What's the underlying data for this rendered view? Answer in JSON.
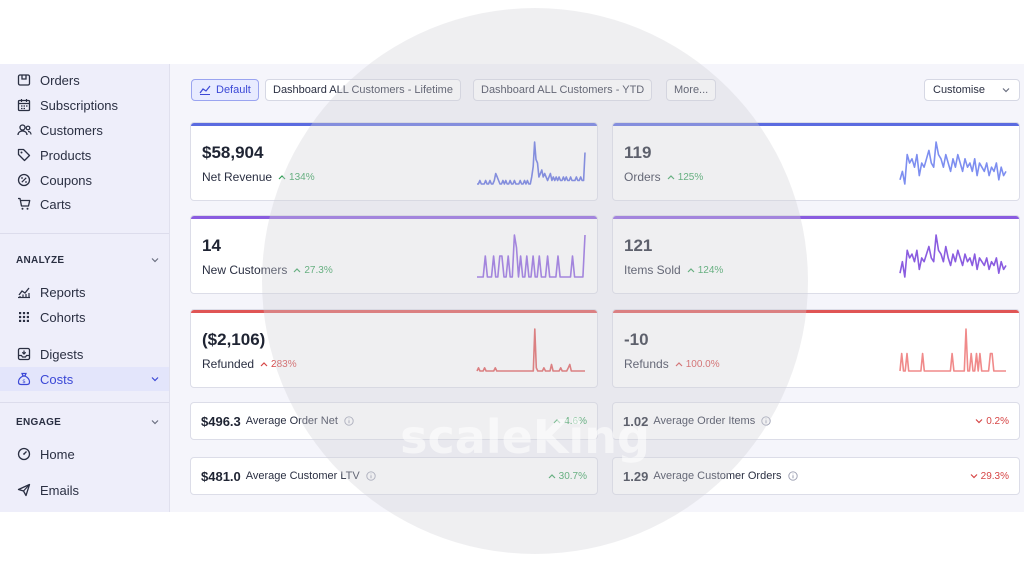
{
  "sidebar": {
    "top_items": [
      {
        "label": "Orders",
        "icon": "package-icon"
      },
      {
        "label": "Subscriptions",
        "icon": "calendar-icon"
      },
      {
        "label": "Customers",
        "icon": "users-icon"
      },
      {
        "label": "Products",
        "icon": "tag-icon"
      },
      {
        "label": "Coupons",
        "icon": "coupon-icon"
      },
      {
        "label": "Carts",
        "icon": "cart-icon"
      }
    ],
    "analyze": {
      "title": "ANALYZE",
      "items": [
        {
          "label": "Reports",
          "icon": "chart-icon"
        },
        {
          "label": "Cohorts",
          "icon": "grid-icon"
        },
        {
          "label": "Digests",
          "icon": "inbox-icon"
        },
        {
          "label": "Costs",
          "icon": "money-bag-icon"
        }
      ]
    },
    "engage": {
      "title": "ENGAGE",
      "items": [
        {
          "label": "Home",
          "icon": "gauge-icon"
        },
        {
          "label": "Emails",
          "icon": "send-icon"
        }
      ]
    }
  },
  "toolbar": {
    "tabs": [
      "Default",
      "Dashboard ALL Customers - Lifetime",
      "Dashboard ALL Customers - YTD",
      "More..."
    ],
    "customise": "Customise"
  },
  "cards": [
    {
      "value": "$58,904",
      "label": "Net Revenue",
      "delta": "134%",
      "color": "#5b6be0",
      "spark": [
        2,
        2,
        3,
        2,
        2,
        2,
        3,
        2,
        2,
        3,
        2,
        2,
        3,
        5,
        4,
        3,
        2,
        2,
        3,
        2,
        3,
        2,
        2,
        3,
        2,
        2,
        3,
        2,
        2,
        2,
        3,
        2,
        2,
        3,
        2,
        3,
        2,
        2,
        4,
        7,
        14,
        9,
        8,
        4,
        5,
        6,
        4,
        5,
        4,
        3,
        4,
        5,
        3,
        4,
        3,
        4,
        3,
        4,
        3,
        3,
        4,
        3,
        4,
        3,
        3,
        4,
        3,
        3,
        3,
        4,
        3,
        3,
        4,
        3,
        3,
        11
      ]
    },
    {
      "value": "119",
      "label": "Orders",
      "delta": "125%",
      "color": "#7d8ef0",
      "spark": [
        3,
        5,
        2,
        9,
        7,
        8,
        6,
        9,
        4,
        7,
        6,
        8,
        10,
        7,
        6,
        12,
        9,
        8,
        6,
        9,
        7,
        5,
        8,
        6,
        9,
        7,
        5,
        8,
        6,
        7,
        5,
        8,
        4,
        7,
        6,
        5,
        7,
        4,
        6,
        5,
        7,
        3,
        6,
        4,
        5
      ]
    },
    {
      "value": "14",
      "label": "New Customers",
      "delta": "27.3%",
      "color": "#8a5ce0",
      "spark": [
        1,
        1,
        1,
        1,
        6,
        1,
        1,
        1,
        6,
        1,
        1,
        6,
        6,
        1,
        1,
        6,
        1,
        1,
        11,
        8,
        1,
        6,
        1,
        1,
        6,
        1,
        1,
        6,
        1,
        1,
        6,
        1,
        1,
        1,
        6,
        1,
        1,
        1,
        1,
        6,
        1,
        1,
        1,
        1,
        1,
        1,
        6,
        1,
        1,
        1,
        1,
        1,
        11
      ]
    },
    {
      "value": "121",
      "label": "Items Sold",
      "delta": "124%",
      "color": "#8a5ce0",
      "spark": [
        3,
        6,
        2,
        9,
        7,
        8,
        6,
        9,
        4,
        7,
        6,
        8,
        10,
        7,
        6,
        13,
        9,
        8,
        6,
        10,
        7,
        5,
        8,
        6,
        9,
        7,
        5,
        8,
        6,
        7,
        5,
        8,
        4,
        7,
        6,
        5,
        7,
        4,
        6,
        5,
        7,
        3,
        6,
        4,
        5
      ]
    },
    {
      "value": "($2,106)",
      "label": "Refunded",
      "delta": "283%",
      "color": "#e05555",
      "spark": [
        1,
        2,
        1,
        1,
        1,
        2,
        1,
        1,
        1,
        1,
        1,
        1,
        2,
        1,
        1,
        1,
        1,
        1,
        1,
        1,
        1,
        1,
        1,
        1,
        1,
        1,
        1,
        1,
        1,
        1,
        1,
        1,
        1,
        1,
        1,
        1,
        1,
        1,
        14,
        2,
        1,
        1,
        1,
        1,
        2,
        1,
        1,
        1,
        1,
        3,
        1,
        1,
        1,
        1,
        1,
        2,
        1,
        1,
        1,
        1,
        2,
        3,
        1,
        1,
        1,
        1,
        1,
        1,
        1,
        1,
        1,
        1
      ]
    },
    {
      "value": "-10",
      "label": "Refunds",
      "delta": "100.0%",
      "color": "#f08a8a",
      "spark": [
        1,
        6,
        1,
        1,
        6,
        1,
        1,
        1,
        1,
        1,
        1,
        1,
        1,
        6,
        1,
        1,
        1,
        1,
        1,
        1,
        1,
        1,
        1,
        1,
        1,
        1,
        1,
        1,
        1,
        1,
        6,
        1,
        1,
        1,
        1,
        1,
        1,
        1,
        13,
        1,
        1,
        6,
        1,
        1,
        6,
        1,
        6,
        1,
        1,
        1,
        1,
        1,
        6,
        6,
        1,
        1,
        1,
        1,
        1,
        1,
        1,
        1
      ]
    }
  ],
  "minis": [
    {
      "value": "$496.3",
      "label": "Average Order Net",
      "delta": "4.6%",
      "dir": "up"
    },
    {
      "value": "1.02",
      "label": "Average Order Items",
      "delta": "0.2%",
      "dir": "down"
    },
    {
      "value": "$481.0",
      "label": "Average Customer LTV",
      "delta": "30.7%",
      "dir": "up"
    },
    {
      "value": "1.29",
      "label": "Average Customer Orders",
      "delta": "29.3%",
      "dir": "down"
    }
  ],
  "watermark": "scaleKing",
  "colors": {
    "accent": "#3b48d6",
    "good": "#2f9e54",
    "bad": "#d64545"
  }
}
